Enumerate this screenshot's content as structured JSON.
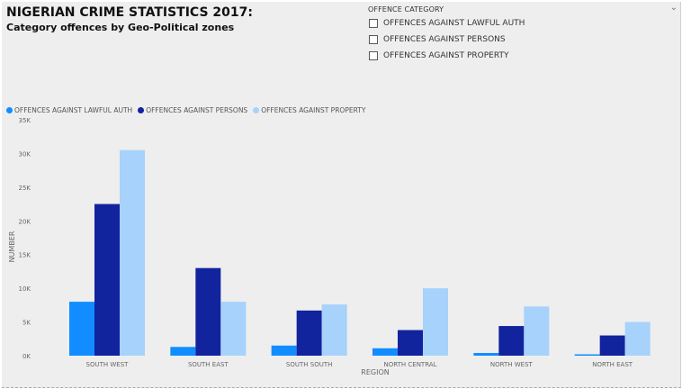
{
  "title": "NIGERIAN CRIME STATISTICS 2017:",
  "subtitle": "Category offences by Geo-Political zones",
  "slicer": {
    "header": "OFFENCE CATEGORY",
    "chevron_icon": "chevron-down-icon",
    "items": [
      {
        "label": "OFFENCES AGAINST LAWFUL AUTH",
        "checked": false
      },
      {
        "label": "OFFENCES AGAINST PERSONS",
        "checked": false
      },
      {
        "label": "OFFENCES AGAINST PROPERTY",
        "checked": false
      }
    ]
  },
  "chart_data": {
    "type": "bar",
    "title": "",
    "xlabel": "REGION",
    "ylabel": "NUMBER",
    "ylim": [
      0,
      35000
    ],
    "yticks": [
      0,
      5000,
      10000,
      15000,
      20000,
      25000,
      30000,
      35000
    ],
    "ytick_labels": [
      "0K",
      "5K",
      "10K",
      "15K",
      "20K",
      "25K",
      "30K",
      "35K"
    ],
    "grid": false,
    "legend_position": "top-left",
    "categories": [
      "SOUTH WEST",
      "SOUTH EAST",
      "SOUTH SOUTH",
      "NORTH CENTRAL",
      "NORTH WEST",
      "NORTH EAST"
    ],
    "series": [
      {
        "name": "OFFENCES AGAINST LAWFUL AUTH",
        "color": "#118dff",
        "values": [
          8000,
          1300,
          1500,
          1100,
          400,
          200
        ]
      },
      {
        "name": "OFFENCES AGAINST PERSONS",
        "color": "#12239e",
        "values": [
          22500,
          13000,
          6700,
          3800,
          4400,
          3000
        ]
      },
      {
        "name": "OFFENCES AGAINST PROPERTY",
        "color": "#a6d2fc",
        "values": [
          30500,
          8000,
          7600,
          10000,
          7300,
          5000
        ]
      }
    ]
  }
}
